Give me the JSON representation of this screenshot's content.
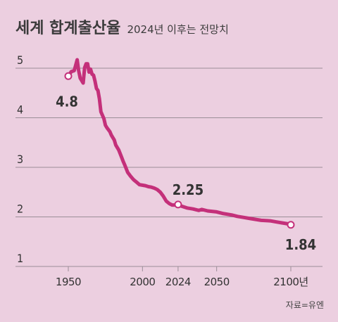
{
  "title": "세계 합계출산율",
  "subtitle": "2024년 이후는 전망치",
  "source": "자료=유엔",
  "colors": {
    "line": "#c4307a",
    "grid": "#9b8e97",
    "text": "#333333",
    "background": "#eccfe0"
  },
  "chart_data": {
    "type": "line",
    "xlim": [
      1950,
      2100
    ],
    "ylim": [
      1,
      5
    ],
    "y_ticks": [
      1,
      2,
      3,
      4,
      5
    ],
    "x_ticks": [
      {
        "value": 1950,
        "label": "1950"
      },
      {
        "value": 2000,
        "label": "2000"
      },
      {
        "value": 2024,
        "label": "2024"
      },
      {
        "value": 2050,
        "label": "2050"
      },
      {
        "value": 2100,
        "label": "2100년"
      }
    ],
    "grid": "horizontal",
    "series": [
      {
        "x": [
          1950,
          1952,
          1954,
          1956,
          1957,
          1958,
          1960,
          1961,
          1962,
          1963,
          1964,
          1965,
          1966,
          1967,
          1968,
          1969,
          1970,
          1971,
          1972,
          1974,
          1975,
          1976,
          1978,
          1979,
          1980,
          1981,
          1982,
          1983,
          1984,
          1986,
          1987,
          1988,
          1990,
          1992,
          1994,
          1996,
          1998,
          2000,
          2002,
          2004,
          2006,
          2008,
          2010,
          2012,
          2014,
          2016,
          2018,
          2020,
          2022,
          2024,
          2026,
          2030,
          2034,
          2038,
          2040,
          2044,
          2050,
          2054,
          2060,
          2064,
          2068,
          2072,
          2076,
          2080,
          2086,
          2090,
          2094,
          2098,
          2100
        ],
        "y": [
          4.84,
          4.93,
          4.95,
          5.17,
          4.95,
          4.8,
          4.7,
          5.01,
          5.09,
          5.09,
          4.92,
          4.98,
          4.88,
          4.86,
          4.74,
          4.59,
          4.55,
          4.38,
          4.12,
          3.98,
          3.85,
          3.8,
          3.72,
          3.65,
          3.6,
          3.55,
          3.45,
          3.4,
          3.35,
          3.2,
          3.12,
          3.05,
          2.9,
          2.82,
          2.75,
          2.7,
          2.65,
          2.64,
          2.63,
          2.61,
          2.6,
          2.58,
          2.55,
          2.5,
          2.42,
          2.32,
          2.27,
          2.24,
          2.24,
          2.25,
          2.22,
          2.18,
          2.16,
          2.13,
          2.15,
          2.12,
          2.1,
          2.07,
          2.04,
          2.01,
          1.99,
          1.97,
          1.95,
          1.93,
          1.92,
          1.9,
          1.88,
          1.86,
          1.84
        ]
      }
    ],
    "annotations": [
      {
        "x": 1950,
        "y": 4.84,
        "label": "4.8"
      },
      {
        "x": 2024,
        "y": 2.25,
        "label": "2.25"
      },
      {
        "x": 2100,
        "y": 1.84,
        "label": "1.84"
      }
    ]
  }
}
